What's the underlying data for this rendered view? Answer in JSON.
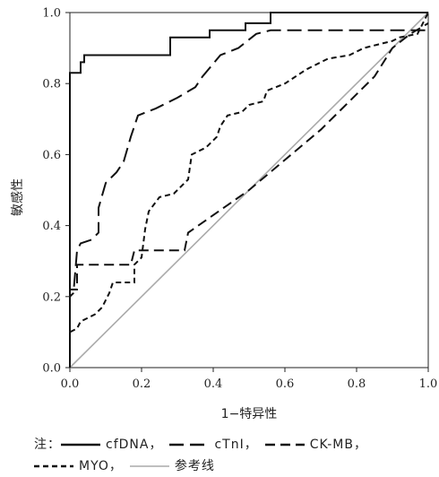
{
  "chart_data": {
    "type": "line",
    "xlabel": "1−特异性",
    "ylabel": "敏感性",
    "xlim": [
      0,
      1
    ],
    "ylim": [
      0,
      1
    ],
    "x_ticks": [
      "0.0",
      "0.2",
      "0.4",
      "0.6",
      "0.8",
      "1.0"
    ],
    "y_ticks": [
      "0.0",
      "0.2",
      "0.4",
      "0.6",
      "0.8",
      "1.0"
    ],
    "grid": false,
    "legend_position": "bottom",
    "legend_prefix": "注：",
    "series": [
      {
        "name": "cfDNA，",
        "dash": "solid",
        "color": "#111111",
        "points": [
          [
            0,
            0
          ],
          [
            0,
            0.83
          ],
          [
            0.03,
            0.83
          ],
          [
            0.03,
            0.86
          ],
          [
            0.04,
            0.86
          ],
          [
            0.04,
            0.88
          ],
          [
            0.28,
            0.88
          ],
          [
            0.28,
            0.93
          ],
          [
            0.39,
            0.93
          ],
          [
            0.39,
            0.95
          ],
          [
            0.49,
            0.95
          ],
          [
            0.49,
            0.97
          ],
          [
            0.56,
            0.97
          ],
          [
            0.56,
            1.0
          ],
          [
            1,
            1
          ]
        ]
      },
      {
        "name": "cTnI，",
        "dash": "long",
        "color": "#111111",
        "points": [
          [
            0,
            0
          ],
          [
            0,
            0.2
          ],
          [
            0.01,
            0.21
          ],
          [
            0.02,
            0.33
          ],
          [
            0.03,
            0.35
          ],
          [
            0.06,
            0.36
          ],
          [
            0.08,
            0.38
          ],
          [
            0.08,
            0.45
          ],
          [
            0.1,
            0.52
          ],
          [
            0.13,
            0.55
          ],
          [
            0.15,
            0.58
          ],
          [
            0.17,
            0.65
          ],
          [
            0.19,
            0.71
          ],
          [
            0.24,
            0.73
          ],
          [
            0.3,
            0.76
          ],
          [
            0.35,
            0.79
          ],
          [
            0.37,
            0.82
          ],
          [
            0.42,
            0.88
          ],
          [
            0.47,
            0.9
          ],
          [
            0.52,
            0.94
          ],
          [
            0.56,
            0.95
          ],
          [
            0.8,
            0.95
          ],
          [
            1,
            0.95
          ]
        ]
      },
      {
        "name": "CK-MB，",
        "dash": "medium",
        "color": "#111111",
        "points": [
          [
            0,
            0
          ],
          [
            0,
            0.22
          ],
          [
            0.02,
            0.22
          ],
          [
            0.02,
            0.29
          ],
          [
            0.17,
            0.29
          ],
          [
            0.18,
            0.33
          ],
          [
            0.32,
            0.33
          ],
          [
            0.33,
            0.38
          ],
          [
            0.5,
            0.5
          ],
          [
            0.7,
            0.67
          ],
          [
            0.85,
            0.82
          ],
          [
            0.9,
            0.9
          ],
          [
            0.95,
            0.94
          ],
          [
            1,
            0.97
          ]
        ]
      },
      {
        "name": "MYO，",
        "dash": "short",
        "color": "#111111",
        "points": [
          [
            0,
            0
          ],
          [
            0,
            0.1
          ],
          [
            0.02,
            0.11
          ],
          [
            0.03,
            0.13
          ],
          [
            0.05,
            0.14
          ],
          [
            0.07,
            0.15
          ],
          [
            0.09,
            0.17
          ],
          [
            0.11,
            0.21
          ],
          [
            0.12,
            0.24
          ],
          [
            0.18,
            0.24
          ],
          [
            0.18,
            0.29
          ],
          [
            0.2,
            0.31
          ],
          [
            0.21,
            0.39
          ],
          [
            0.22,
            0.44
          ],
          [
            0.25,
            0.48
          ],
          [
            0.29,
            0.49
          ],
          [
            0.3,
            0.5
          ],
          [
            0.33,
            0.53
          ],
          [
            0.34,
            0.6
          ],
          [
            0.36,
            0.61
          ],
          [
            0.38,
            0.62
          ],
          [
            0.41,
            0.65
          ],
          [
            0.42,
            0.68
          ],
          [
            0.44,
            0.71
          ],
          [
            0.48,
            0.72
          ],
          [
            0.5,
            0.74
          ],
          [
            0.54,
            0.75
          ],
          [
            0.55,
            0.78
          ],
          [
            0.6,
            0.8
          ],
          [
            0.66,
            0.84
          ],
          [
            0.72,
            0.87
          ],
          [
            0.78,
            0.88
          ],
          [
            0.82,
            0.9
          ],
          [
            0.86,
            0.91
          ],
          [
            0.9,
            0.92
          ],
          [
            0.92,
            0.93
          ],
          [
            0.97,
            0.94
          ],
          [
            1,
            1
          ]
        ]
      },
      {
        "name": "参考线",
        "dash": "solid",
        "color": "#aaaaaa",
        "points": [
          [
            0,
            0
          ],
          [
            1,
            1
          ]
        ]
      }
    ]
  }
}
